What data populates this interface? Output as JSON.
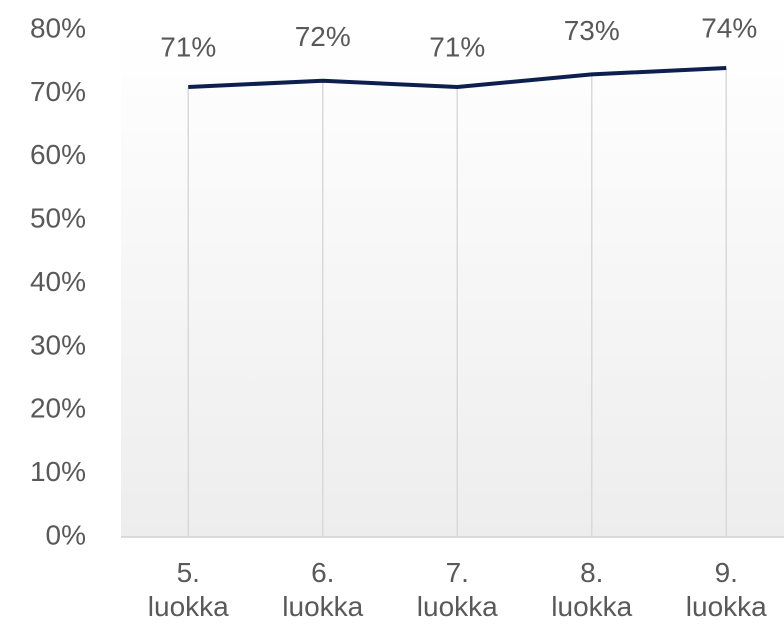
{
  "chart_data": {
    "type": "line",
    "categories": [
      "5. luokka",
      "6. luokka",
      "7. luokka",
      "8. luokka",
      "9. luokka"
    ],
    "series": [
      {
        "color": "#0d1f4f",
        "values": [
          71,
          72,
          71,
          73,
          74
        ],
        "value_labels": [
          "71%",
          "72%",
          "71%",
          "73%",
          "74%"
        ]
      }
    ],
    "ylim": [
      0,
      80
    ],
    "yticks": [
      {
        "value": 0,
        "label": "0%"
      },
      {
        "value": 10,
        "label": "10%"
      },
      {
        "value": 20,
        "label": "20%"
      },
      {
        "value": 30,
        "label": "30%"
      },
      {
        "value": 40,
        "label": "40%"
      },
      {
        "value": 50,
        "label": "50%"
      },
      {
        "value": 60,
        "label": "60%"
      },
      {
        "value": 70,
        "label": "70%"
      },
      {
        "value": 80,
        "label": "80%"
      }
    ]
  }
}
